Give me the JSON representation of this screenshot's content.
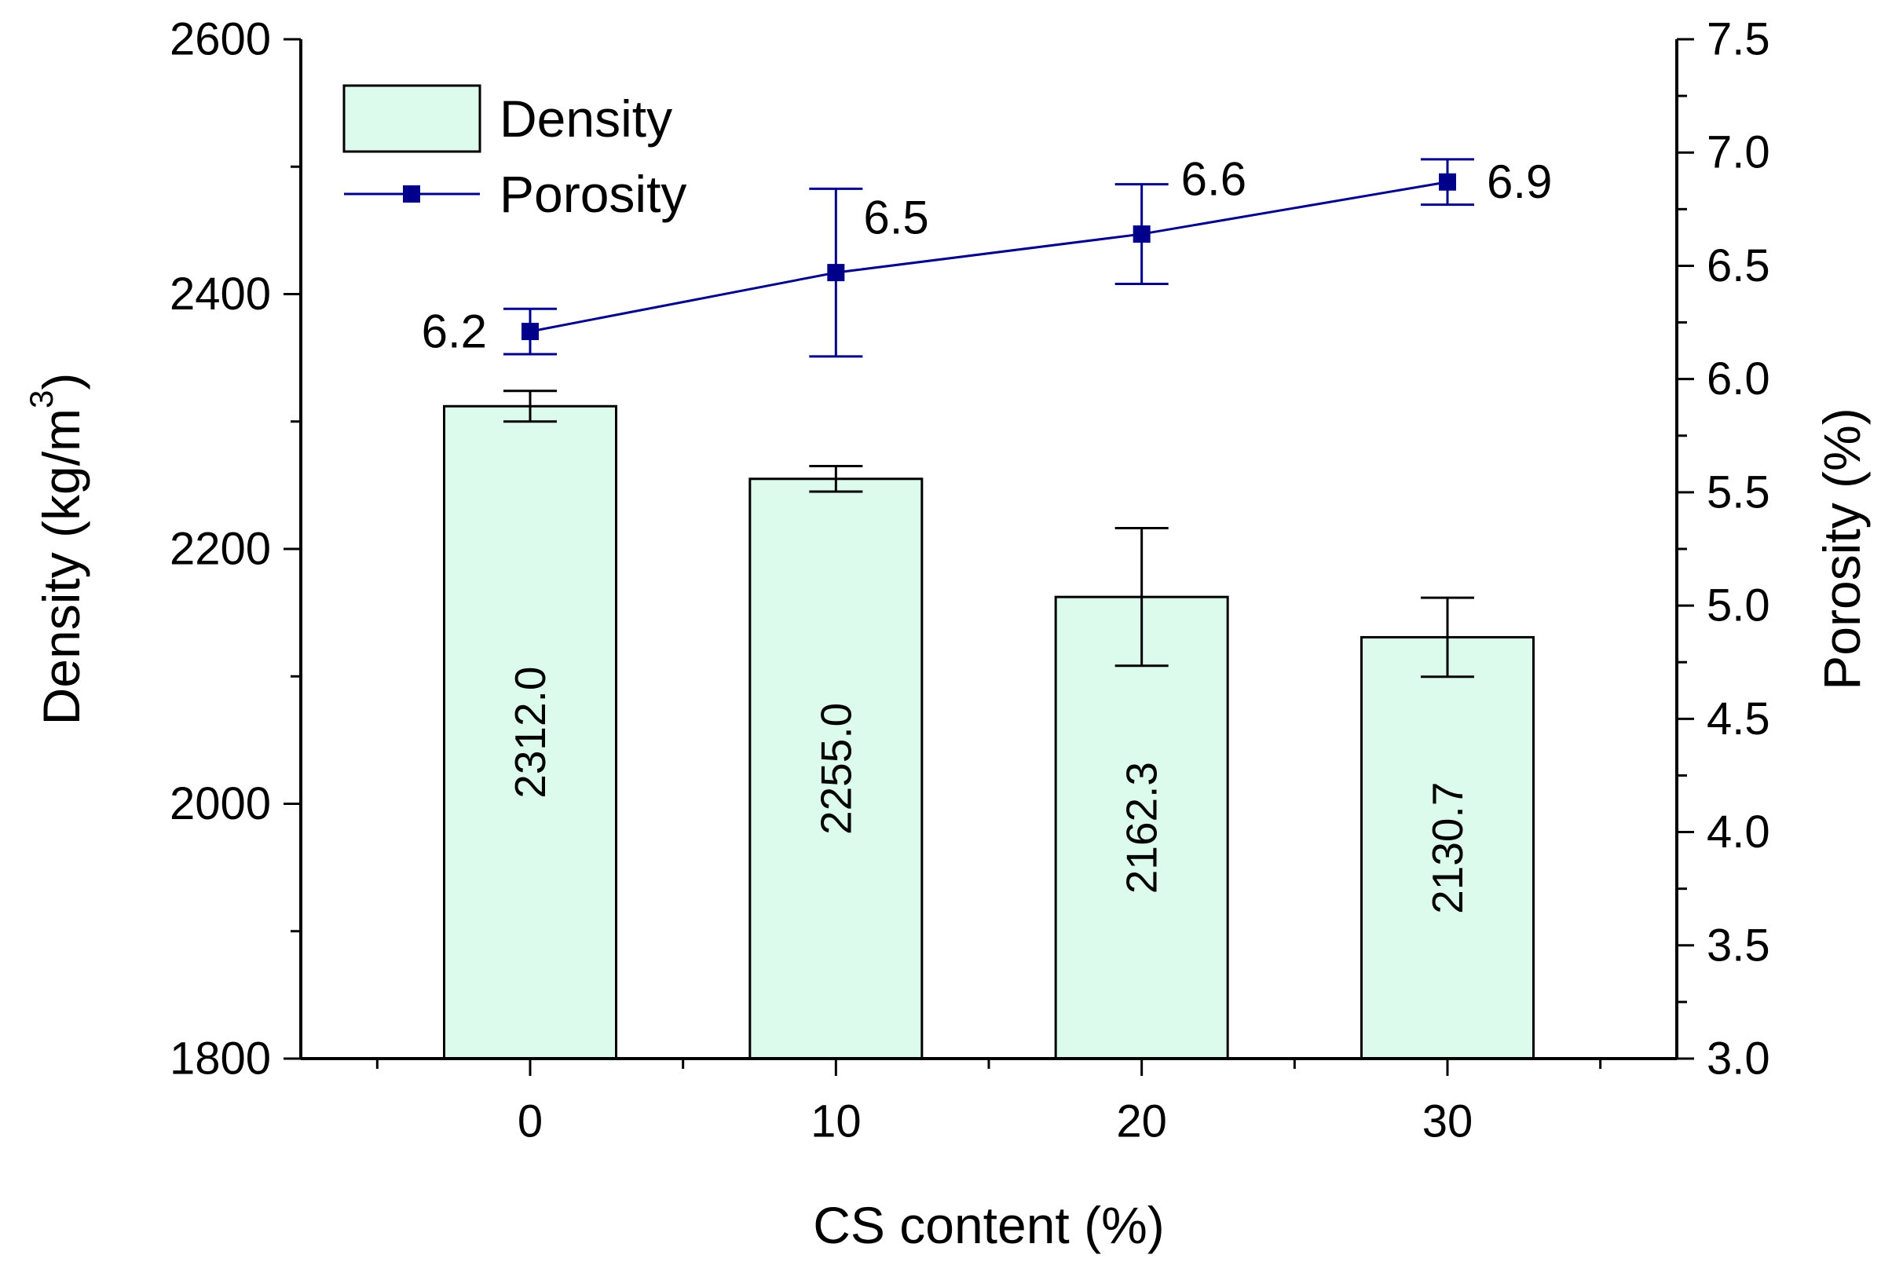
{
  "chart_data": {
    "type": "bar+line",
    "categories": [
      "0",
      "10",
      "20",
      "30"
    ],
    "xlabel": "CS content (%)",
    "ylabel": "Density (kg/m",
    "ylabel_sup": "3",
    "ylabel_close": ")",
    "y2label": "Porosity (%)",
    "ylim": [
      1800,
      2600
    ],
    "y2lim": [
      3.0,
      7.5
    ],
    "yticks": [
      "1800",
      "2000",
      "2200",
      "2400",
      "2600"
    ],
    "y2ticks": [
      "3.0",
      "3.5",
      "4.0",
      "4.5",
      "5.0",
      "5.5",
      "6.0",
      "6.5",
      "7.0",
      "7.5"
    ],
    "legend_position": "top-left",
    "colors": {
      "bar_fill": "#dcfbed",
      "bar_stroke": "#000000",
      "line": "#00008b",
      "marker": "#00008b",
      "error_bar_density": "#000000",
      "error_bar_porosity": "#00008b"
    },
    "series": [
      {
        "name": "Density",
        "kind": "bar",
        "axis": "left",
        "values": [
          2312.0,
          2255.0,
          2162.3,
          2130.7
        ],
        "labels": [
          "2312.0",
          "2255.0",
          "2162.3",
          "2130.7"
        ],
        "error": [
          12,
          10,
          54,
          31
        ]
      },
      {
        "name": "Porosity",
        "kind": "line",
        "axis": "right",
        "values": [
          6.21,
          6.47,
          6.64,
          6.87
        ],
        "labels": [
          "6.2",
          "6.5",
          "6.6",
          "6.9"
        ],
        "error": [
          0.1,
          0.37,
          0.22,
          0.1
        ]
      }
    ]
  }
}
